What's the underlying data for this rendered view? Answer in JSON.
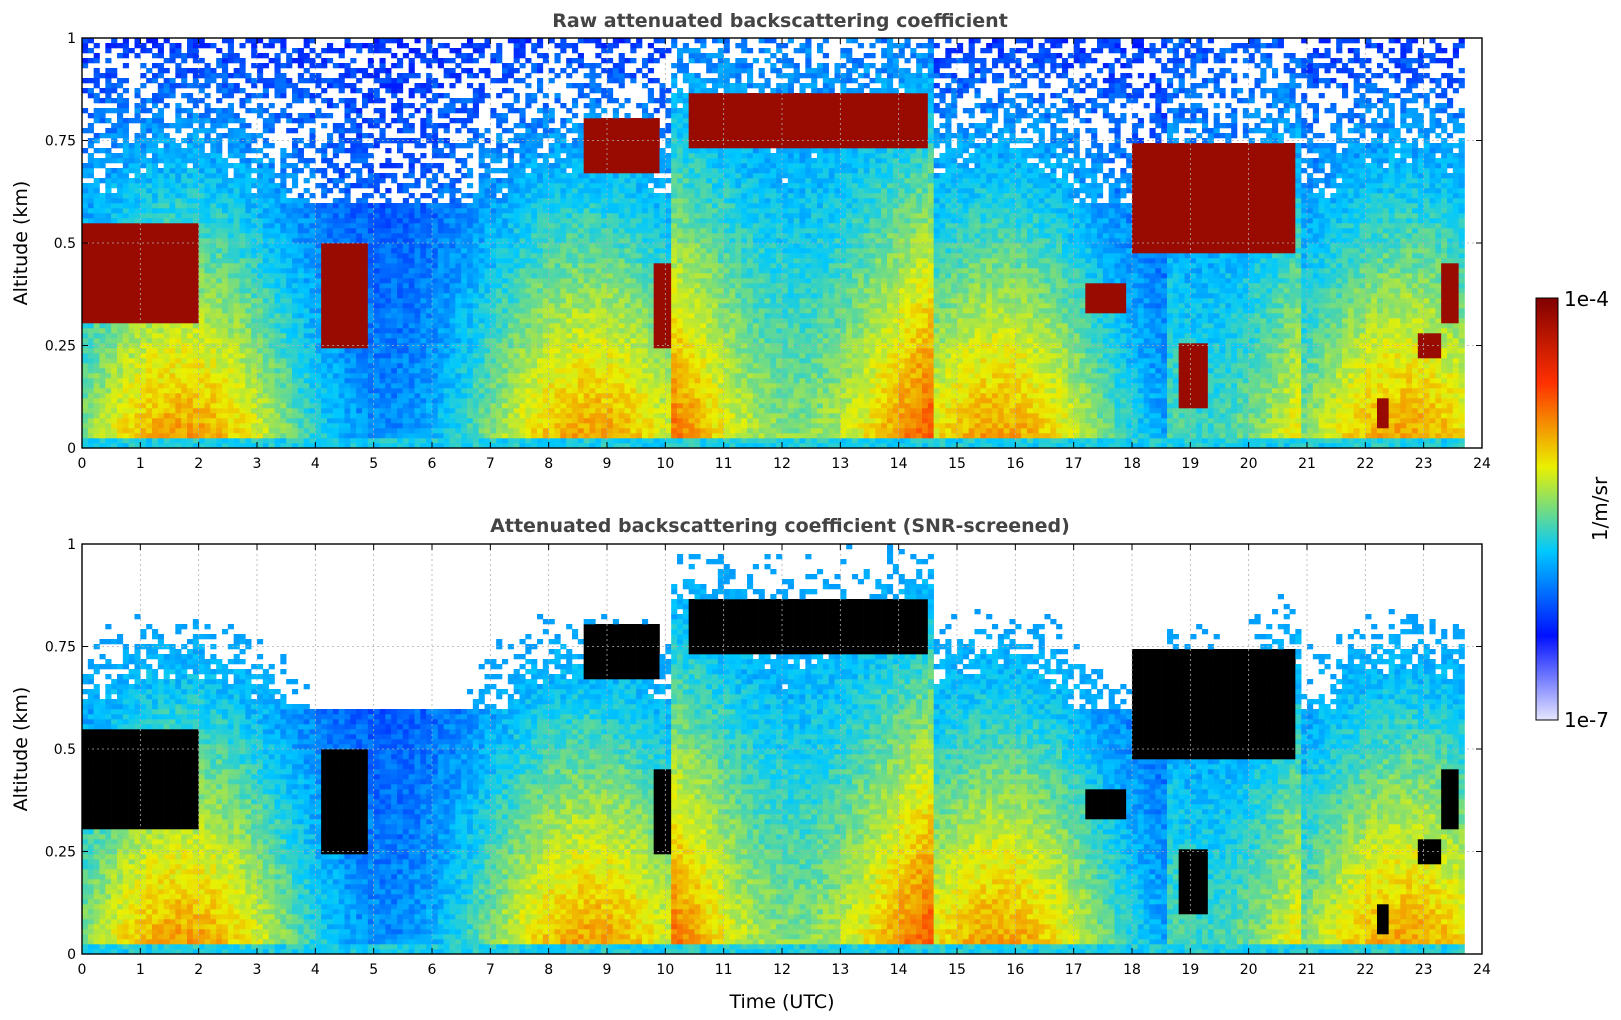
{
  "chart_data": [
    {
      "type": "heatmap",
      "title": "Raw attenuated backscattering coefficient",
      "xlabel": "",
      "ylabel": "Altitude (km)",
      "xlim": [
        0,
        24
      ],
      "ylim": [
        0,
        1
      ],
      "xticks": [
        "0",
        "1",
        "2",
        "3",
        "4",
        "5",
        "6",
        "7",
        "8",
        "9",
        "10",
        "11",
        "12",
        "13",
        "14",
        "15",
        "16",
        "17",
        "18",
        "19",
        "20",
        "21",
        "22",
        "23",
        "24"
      ],
      "yticks": [
        "0",
        "0.25",
        "0.5",
        "0.75",
        "1"
      ],
      "grid": true,
      "screened": false,
      "cloud_layers": [
        {
          "t0": 0.0,
          "t1": 2.0,
          "base_km": 0.3,
          "top_km": 0.55
        },
        {
          "t0": 4.1,
          "t1": 4.9,
          "base_km": 0.25,
          "top_km": 0.5
        },
        {
          "t0": 8.6,
          "t1": 9.9,
          "base_km": 0.67,
          "top_km": 0.8
        },
        {
          "t0": 9.8,
          "t1": 10.1,
          "base_km": 0.25,
          "top_km": 0.45
        },
        {
          "t0": 10.4,
          "t1": 14.5,
          "base_km": 0.73,
          "top_km": 0.87
        },
        {
          "t0": 17.2,
          "t1": 17.9,
          "base_km": 0.33,
          "top_km": 0.4
        },
        {
          "t0": 18.0,
          "t1": 20.8,
          "base_km": 0.47,
          "top_km": 0.74
        },
        {
          "t0": 18.8,
          "t1": 19.3,
          "base_km": 0.1,
          "top_km": 0.25
        },
        {
          "t0": 22.2,
          "t1": 22.4,
          "base_km": 0.05,
          "top_km": 0.12
        },
        {
          "t0": 22.9,
          "t1": 23.3,
          "base_km": 0.22,
          "top_km": 0.28
        },
        {
          "t0": 23.3,
          "t1": 23.6,
          "base_km": 0.3,
          "top_km": 0.45
        }
      ]
    },
    {
      "type": "heatmap",
      "title": "Attenuated backscattering coefficient (SNR-screened)",
      "xlabel": "Time (UTC)",
      "ylabel": "Altitude (km)",
      "xlim": [
        0,
        24
      ],
      "ylim": [
        0,
        1
      ],
      "xticks": [
        "0",
        "1",
        "2",
        "3",
        "4",
        "5",
        "6",
        "7",
        "8",
        "9",
        "10",
        "11",
        "12",
        "13",
        "14",
        "15",
        "16",
        "17",
        "18",
        "19",
        "20",
        "21",
        "22",
        "23",
        "24"
      ],
      "yticks": [
        "0",
        "0.25",
        "0.5",
        "0.75",
        "1"
      ],
      "grid": true,
      "screened": true,
      "cloud_layers": [
        {
          "t0": 0.0,
          "t1": 2.0,
          "base_km": 0.3,
          "top_km": 0.55
        },
        {
          "t0": 4.1,
          "t1": 4.9,
          "base_km": 0.25,
          "top_km": 0.5
        },
        {
          "t0": 8.6,
          "t1": 9.9,
          "base_km": 0.67,
          "top_km": 0.8
        },
        {
          "t0": 9.8,
          "t1": 10.1,
          "base_km": 0.25,
          "top_km": 0.45
        },
        {
          "t0": 10.4,
          "t1": 14.5,
          "base_km": 0.73,
          "top_km": 0.87
        },
        {
          "t0": 17.2,
          "t1": 17.9,
          "base_km": 0.33,
          "top_km": 0.4
        },
        {
          "t0": 18.0,
          "t1": 20.8,
          "base_km": 0.47,
          "top_km": 0.74
        },
        {
          "t0": 18.8,
          "t1": 19.3,
          "base_km": 0.1,
          "top_km": 0.25
        },
        {
          "t0": 22.2,
          "t1": 22.4,
          "base_km": 0.05,
          "top_km": 0.12
        },
        {
          "t0": 22.9,
          "t1": 23.3,
          "base_km": 0.22,
          "top_km": 0.28
        },
        {
          "t0": 23.3,
          "t1": 23.6,
          "base_km": 0.3,
          "top_km": 0.45
        }
      ]
    }
  ],
  "colorbar": {
    "min_label": "1e-7",
    "max_label": "1e-4",
    "units": "1/m/sr",
    "colormap": "jet",
    "colors": [
      "#e6e6ff",
      "#0010ff",
      "#00c8ff",
      "#eaf000",
      "#ff3000",
      "#800000"
    ],
    "screened_flag_color": "#000000"
  }
}
